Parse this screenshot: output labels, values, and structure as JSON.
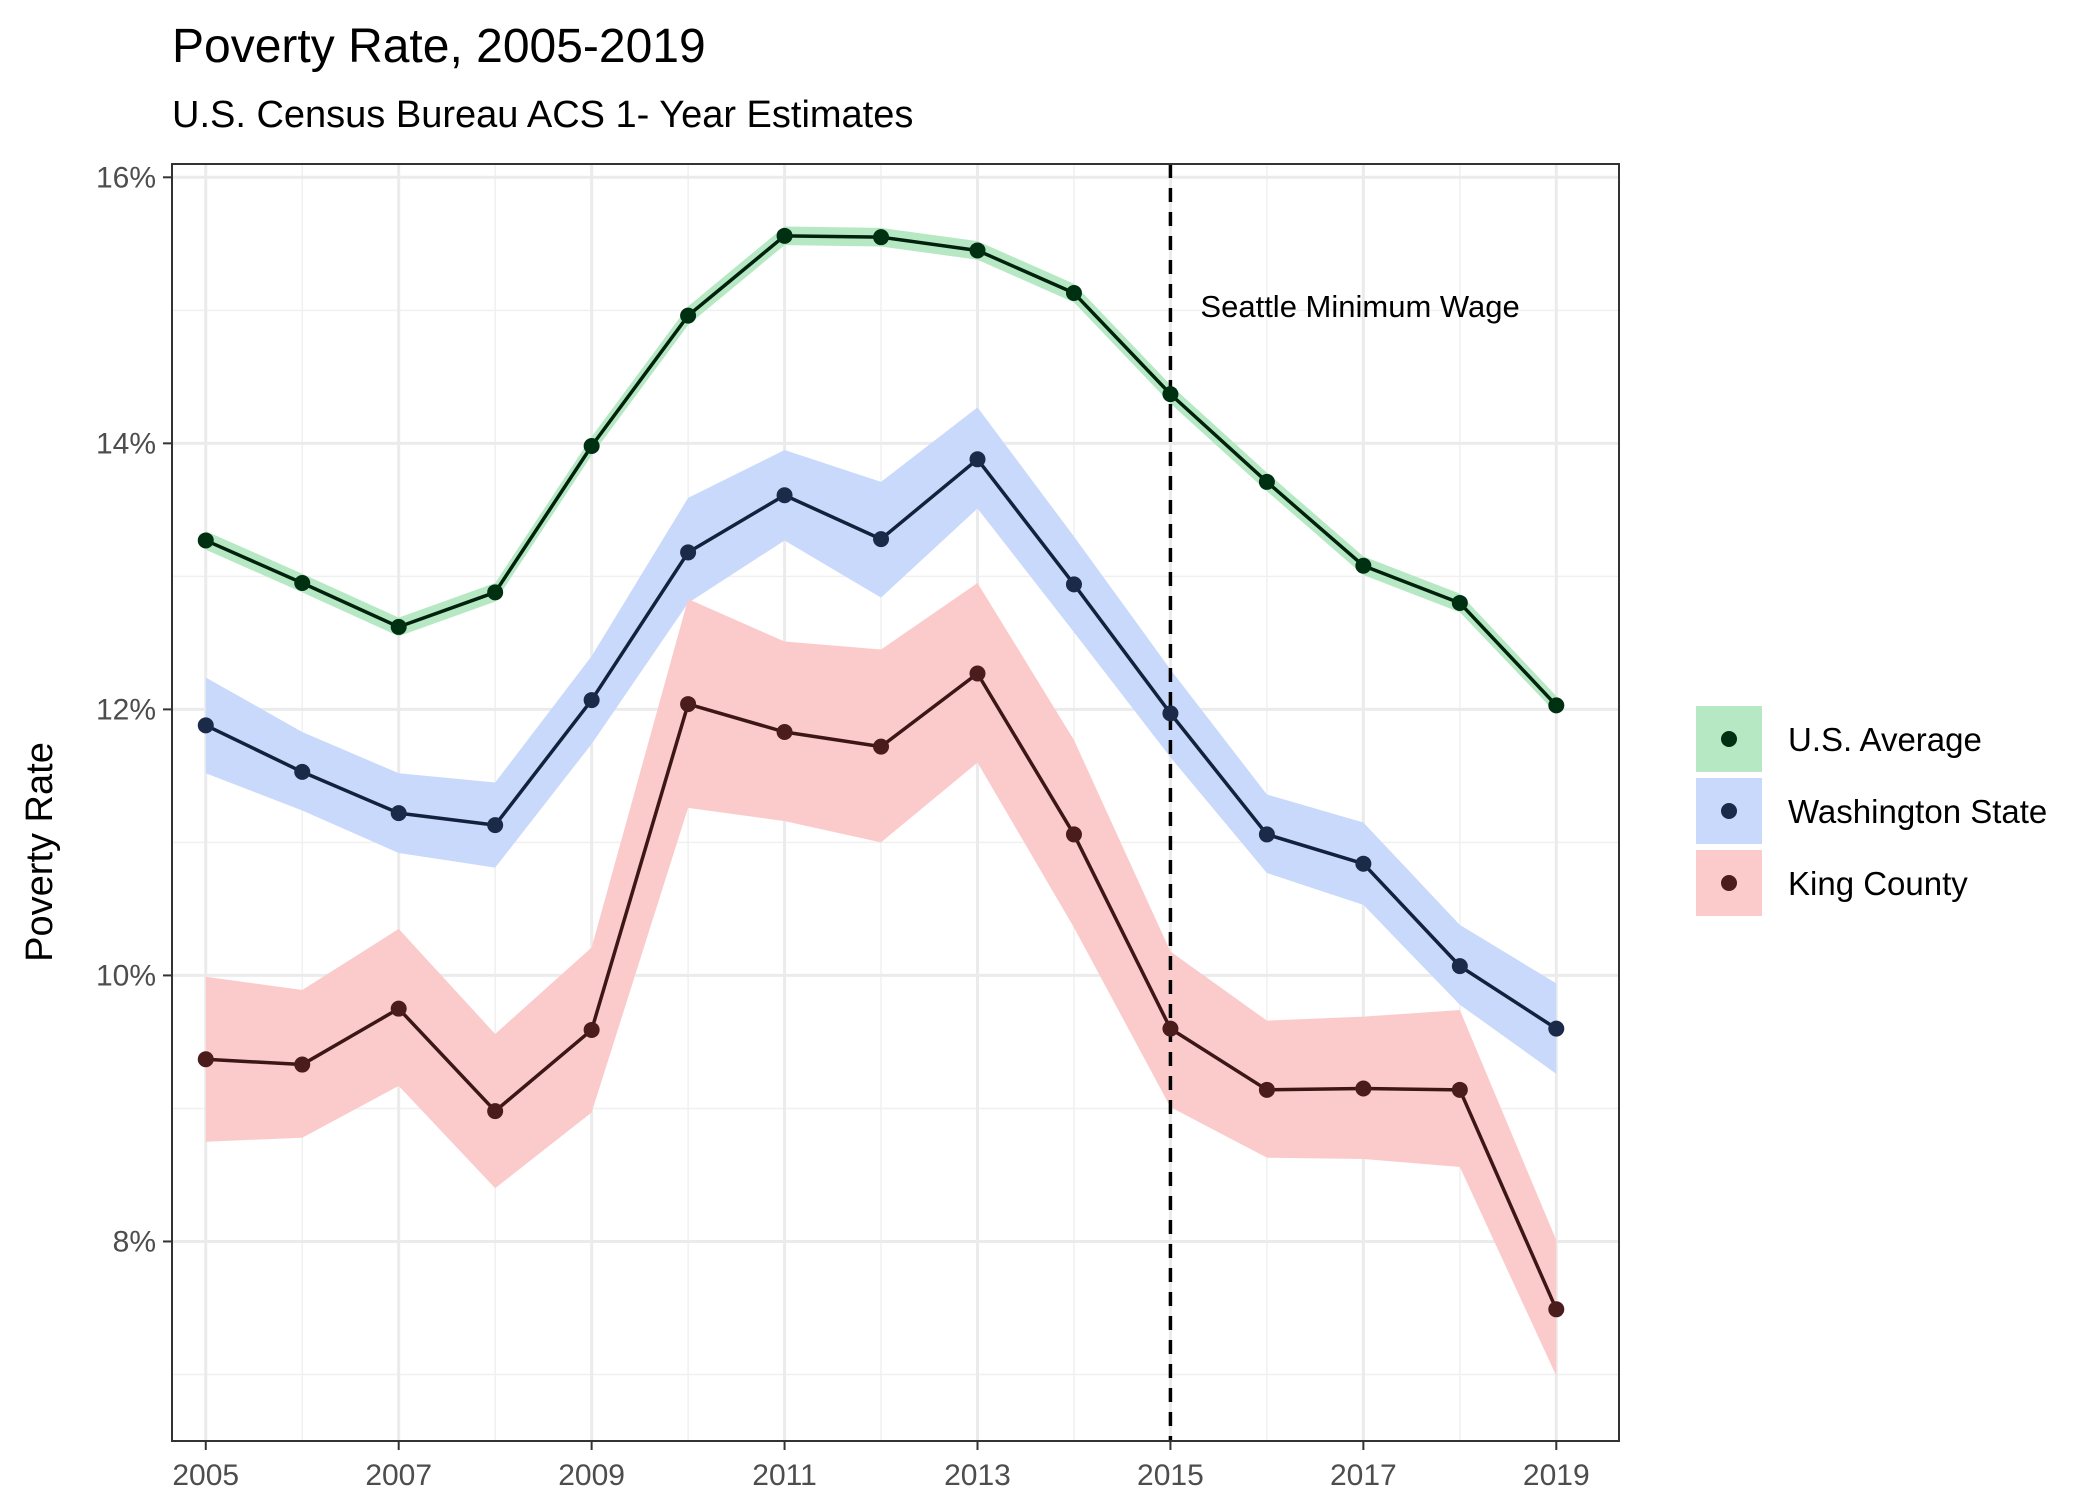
{
  "chart_data": {
    "type": "line",
    "title": "Poverty Rate, 2005-2019",
    "subtitle": "U.S. Census Bureau ACS 1- Year Estimates",
    "ylabel": "Poverty Rate",
    "xlabel": "",
    "x": [
      2005,
      2006,
      2007,
      2008,
      2009,
      2010,
      2011,
      2012,
      2013,
      2014,
      2015,
      2016,
      2017,
      2018,
      2019
    ],
    "xticks": [
      2005,
      2007,
      2009,
      2011,
      2013,
      2015,
      2017,
      2019
    ],
    "xtick_labels": [
      "2005",
      "2007",
      "2009",
      "2011",
      "2013",
      "2015",
      "2017",
      "2019"
    ],
    "yticks": [
      8,
      10,
      12,
      14,
      16
    ],
    "ytick_labels": [
      "8%",
      "10%",
      "12%",
      "14%",
      "16%"
    ],
    "xlim": [
      2004.65,
      2019.65
    ],
    "ylim": [
      6.5,
      16.1
    ],
    "grid": true,
    "legend_position": "right",
    "series": [
      {
        "name": "U.S. Average",
        "line_color": "#00210c",
        "band_color": "#b6e8c4",
        "point_color": "#003012",
        "values": [
          13.27,
          12.95,
          12.62,
          12.88,
          13.98,
          14.96,
          15.56,
          15.55,
          15.45,
          15.13,
          14.37,
          13.71,
          13.08,
          12.8,
          12.03
        ],
        "lower": [
          13.2,
          12.88,
          12.55,
          12.81,
          13.91,
          14.89,
          15.49,
          15.48,
          15.38,
          15.06,
          14.3,
          13.64,
          13.01,
          12.73,
          11.97
        ],
        "upper": [
          13.34,
          13.02,
          12.69,
          12.95,
          14.05,
          15.03,
          15.63,
          15.62,
          15.52,
          15.2,
          14.44,
          13.78,
          13.15,
          12.87,
          12.1
        ]
      },
      {
        "name": "Washington State",
        "line_color": "#13213d",
        "band_color": "#c9d9fb",
        "point_color": "#1b2a48",
        "values": [
          11.88,
          11.53,
          11.22,
          11.13,
          12.07,
          13.18,
          13.61,
          13.28,
          13.88,
          12.94,
          11.97,
          11.06,
          10.84,
          10.07,
          9.6
        ],
        "lower": [
          11.52,
          11.24,
          10.92,
          10.81,
          11.74,
          12.8,
          13.27,
          12.84,
          13.51,
          12.58,
          11.64,
          10.77,
          10.53,
          9.78,
          9.26
        ],
        "upper": [
          12.24,
          11.83,
          11.52,
          11.45,
          12.4,
          13.59,
          13.95,
          13.71,
          14.27,
          13.3,
          12.3,
          11.36,
          11.15,
          10.38,
          9.94
        ]
      },
      {
        "name": "King County",
        "line_color": "#3d1616",
        "band_color": "#fbcbcb",
        "point_color": "#4a1c1c",
        "values": [
          9.37,
          9.33,
          9.75,
          8.98,
          9.59,
          12.04,
          11.83,
          11.72,
          12.27,
          11.06,
          9.6,
          9.14,
          9.15,
          9.14,
          7.49
        ],
        "lower": [
          8.75,
          8.78,
          9.17,
          8.4,
          8.97,
          11.26,
          11.16,
          11.0,
          11.6,
          10.36,
          9.01,
          8.63,
          8.62,
          8.56,
          6.99
        ],
        "upper": [
          9.99,
          9.89,
          10.35,
          9.56,
          10.21,
          12.83,
          12.51,
          12.45,
          12.95,
          11.77,
          10.18,
          9.66,
          9.69,
          9.74,
          8.01
        ]
      }
    ],
    "annotations": [
      {
        "type": "vline",
        "x": 2015,
        "text": "Seattle Minimum Wage",
        "y_text": 14.95
      }
    ]
  }
}
